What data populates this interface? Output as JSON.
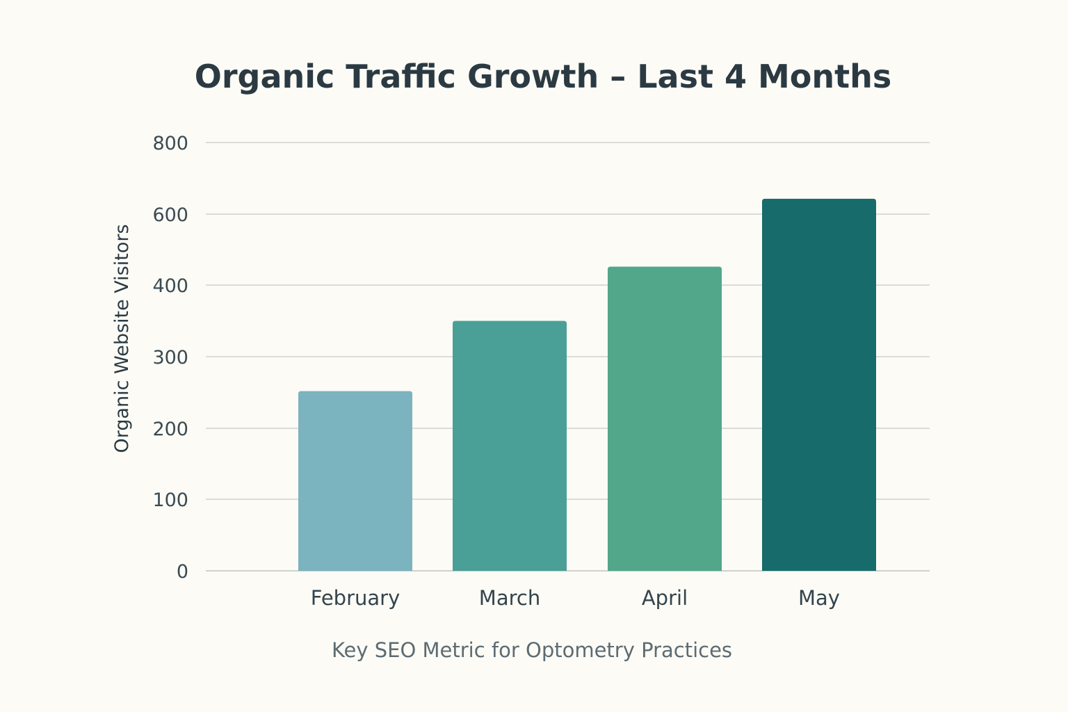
{
  "chart_data": {
    "type": "bar",
    "title": "Organic Traffic Growth – Last 4 Months",
    "ylabel": "Organic Website Visitors",
    "xlabel": "Key SEO Metric for Optometry Practices",
    "categories": [
      "February",
      "March",
      "April",
      "May"
    ],
    "values": [
      252,
      350,
      452,
      643
    ],
    "y_ticks": [
      "0",
      "100",
      "200",
      "300",
      "400",
      "600",
      "800"
    ],
    "bar_colors": [
      "#7bb3bf",
      "#4a9f96",
      "#52a78b",
      "#186b6b"
    ],
    "grid": true,
    "legend": "none"
  }
}
